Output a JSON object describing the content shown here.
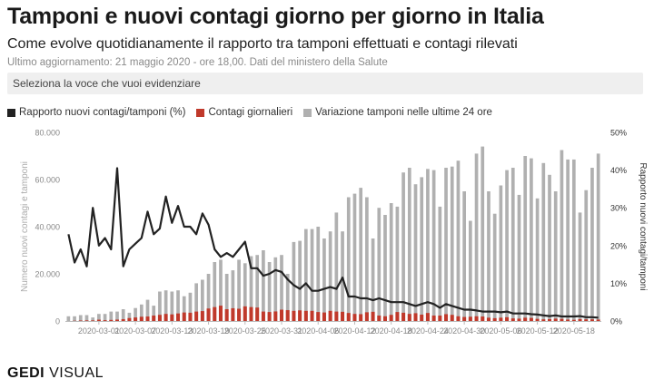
{
  "header": {
    "title": "Tamponi e nuovi contagi giorno per giorno in Italia",
    "subtitle": "Come evolve quotidianamente il rapporto tra tamponi effettuati e contagi rilevati",
    "updated": "Ultimo aggiornamento: 21 maggio 2020 - ore 18,00. Dati del ministero della Salute",
    "selector_placeholder": "Seleziona la voce che vuoi evidenziare"
  },
  "legend": [
    {
      "label": "Rapporto nuovi contagi/tamponi (%)",
      "color": "#222222"
    },
    {
      "label": "Contagi giornalieri",
      "color": "#c0392b"
    },
    {
      "label": "Variazione tamponi nelle ultime 24 ore",
      "color": "#b0b0b0"
    }
  ],
  "footer": {
    "logo_bold": "GEDI",
    "logo_light": "VISUAL"
  },
  "chart_data": {
    "type": "bar",
    "x_start": "2020-02-25",
    "x_end": "2020-05-21",
    "xticks": [
      "2020-03-01",
      "2020-03-07",
      "2020-03-13",
      "2020-03-19",
      "2020-03-25",
      "2020-03-31",
      "2020-04-06",
      "2020-04-12",
      "2020-04-18",
      "2020-04-24",
      "2020-04-30",
      "2020-05-06",
      "2020-05-12",
      "2020-05-18"
    ],
    "ylabel": "Numero nuovi contagi e tamponi",
    "ylabel_right": "Rapporto nuovi contagi/tamponi",
    "ylim": [
      0,
      80000
    ],
    "yticks": [
      "0",
      "20.000",
      "40.000",
      "60.000",
      "80.000"
    ],
    "ylim_right": [
      0,
      50
    ],
    "yticks_right": [
      "0%",
      "10%",
      "20%",
      "30%",
      "40%",
      "50%"
    ],
    "colors": {
      "tests": "#b0b0b0",
      "cases": "#c0392b",
      "ratio": "#222222",
      "axis": "#bbbbbb",
      "ticks": "#888888"
    },
    "series": [
      {
        "name": "Variazione tamponi nelle ultime 24 ore",
        "unit": "count",
        "values": [
          2000,
          2000,
          2500,
          2500,
          1500,
          3000,
          3000,
          4000,
          4000,
          5000,
          3500,
          5500,
          7000,
          9000,
          6500,
          12500,
          13000,
          12500,
          13000,
          10500,
          12000,
          16000,
          17500,
          20000,
          25000,
          26000,
          20000,
          21500,
          26000,
          24500,
          27500,
          28000,
          30000,
          25000,
          27000,
          28000,
          20000,
          33500,
          34000,
          39000,
          39000,
          40000,
          35000,
          38000,
          46000,
          38000,
          52500,
          54000,
          56500,
          52500,
          35000,
          48000,
          45000,
          50000,
          48500,
          63000,
          65000,
          58000,
          61000,
          64500,
          64000,
          48500,
          65000,
          65500,
          68000,
          55000,
          42500,
          71000,
          74000,
          55000,
          45500,
          57500,
          64000,
          65000,
          53500,
          70000,
          69000,
          52000,
          67000,
          62000,
          55000,
          72500,
          68500,
          68500,
          46000,
          55500,
          65000,
          71000
        ]
      },
      {
        "name": "Contagi giornalieri",
        "unit": "count",
        "values": [
          0,
          100,
          200,
          250,
          240,
          560,
          340,
          460,
          590,
          780,
          1250,
          1500,
          1800,
          1900,
          2300,
          2600,
          3000,
          2800,
          3200,
          3600,
          3500,
          4000,
          4200,
          5300,
          5900,
          6500,
          5000,
          5400,
          5200,
          6200,
          5900,
          5700,
          4000,
          3800,
          4050,
          4800,
          4600,
          4300,
          4500,
          4300,
          4300,
          3800,
          3600,
          4300,
          4000,
          3900,
          3400,
          3000,
          2900,
          3700,
          3900,
          2300,
          2000,
          2600,
          3800,
          3500,
          3000,
          3300,
          2700,
          3400,
          2300,
          2300,
          2900,
          2600,
          2000,
          1700,
          1800,
          2000,
          1900,
          1400,
          1200,
          1400,
          1600,
          1100,
          1000,
          1400,
          1300,
          900,
          700,
          800,
          1000,
          900,
          600,
          500,
          800,
          700,
          700,
          600
        ]
      },
      {
        "name": "Rapporto nuovi contagi/tamponi (%)",
        "unit": "percent",
        "values": [
          23,
          15.5,
          19,
          14.5,
          30,
          20,
          22,
          19,
          40.5,
          14.5,
          19,
          20.5,
          22,
          29,
          23,
          24.5,
          33,
          26,
          30.5,
          25,
          25,
          23,
          28.5,
          25.5,
          19,
          17,
          18,
          17,
          19,
          21,
          14,
          14,
          12,
          12.5,
          13.5,
          13,
          11,
          9.5,
          8.5,
          10,
          8,
          8,
          8.5,
          9,
          8.5,
          11.5,
          6.5,
          6.5,
          6,
          6,
          5.5,
          6,
          5.5,
          5,
          5,
          5,
          4.5,
          4,
          4.5,
          5,
          4.5,
          3.5,
          4.5,
          4,
          3.5,
          3,
          3,
          2.8,
          2.5,
          2.5,
          2.5,
          2.3,
          2.5,
          2,
          2,
          2,
          1.8,
          1.7,
          1.5,
          1.3,
          1.5,
          1.2,
          1.2,
          1.2,
          1.3,
          1,
          1,
          0.9
        ]
      }
    ]
  }
}
